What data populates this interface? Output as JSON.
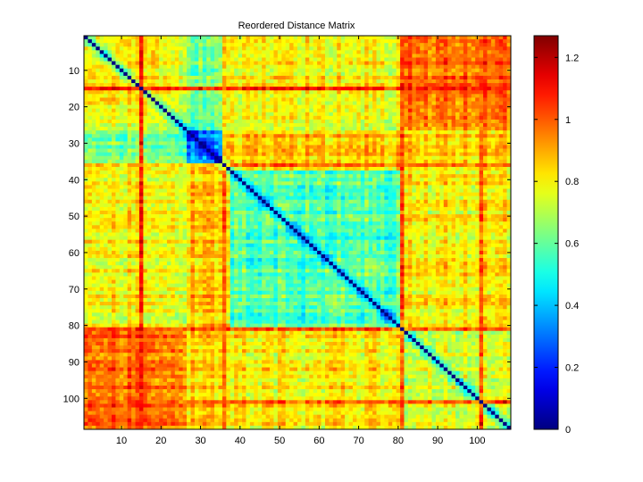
{
  "chart_data": {
    "type": "heatmap",
    "title": "Reordered Distance Matrix",
    "n": 108,
    "x_ticks": [
      10,
      20,
      30,
      40,
      50,
      60,
      70,
      80,
      90,
      100
    ],
    "y_ticks": [
      10,
      20,
      30,
      40,
      50,
      60,
      70,
      80,
      90,
      100
    ],
    "colorbar": {
      "colormap": "jet",
      "range": [
        0,
        1.27
      ],
      "ticks": [
        0,
        0.2,
        0.4,
        0.6,
        0.8,
        1,
        1.2
      ],
      "tick_labels": [
        "0",
        "0.2",
        "0.4",
        "0.6",
        "0.8",
        "1",
        "1.2"
      ]
    },
    "structure": {
      "diagonal_value": 0,
      "background_value": 0.8,
      "within_cluster": [
        {
          "rows": [
            27,
            36
          ],
          "value": 0.32
        },
        {
          "rows": [
            38,
            81
          ],
          "value": 0.58
        },
        {
          "rows": [
            82,
            107
          ],
          "value": 0.75
        }
      ],
      "between_clusters": [
        {
          "rows": [
            1,
            26
          ],
          "cols": [
            27,
            36
          ],
          "value": 0.62
        },
        {
          "rows": [
            27,
            36
          ],
          "cols": [
            37,
            108
          ],
          "value": 0.88
        },
        {
          "rows": [
            1,
            26
          ],
          "cols": [
            82,
            108
          ],
          "value": 1.0
        },
        {
          "rows": [
            38,
            81
          ],
          "cols": [
            82,
            108
          ],
          "value": 0.82
        }
      ],
      "high_lines": [
        {
          "index": 81,
          "value": 1.0
        },
        {
          "index": 101,
          "value": 1.05
        },
        {
          "index": 36,
          "value": 0.95
        },
        {
          "index": 15,
          "value": 1.1
        }
      ]
    }
  }
}
